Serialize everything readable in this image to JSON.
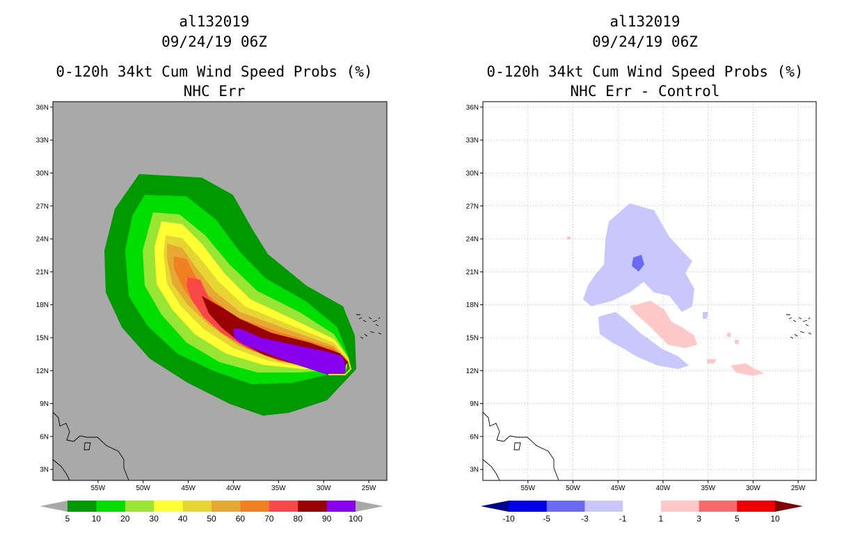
{
  "chart_data": [
    {
      "type": "heatmap",
      "storm_id": "al132019",
      "date": "09/24/19 06Z",
      "title": "0-120h 34kt Cum Wind Speed Probs (%)",
      "subtitle": "NHC Err",
      "lon_range": [
        -60,
        -23
      ],
      "lat_range": [
        2,
        36.5
      ],
      "x_ticks": [
        "55W",
        "50W",
        "45W",
        "40W",
        "35W",
        "30W",
        "25W"
      ],
      "y_ticks": [
        "36N",
        "33N",
        "30N",
        "27N",
        "24N",
        "21N",
        "18N",
        "15N",
        "12N",
        "9N",
        "6N",
        "3N"
      ],
      "grid": false,
      "colorbar": {
        "labels": [
          "5",
          "10",
          "20",
          "30",
          "40",
          "50",
          "60",
          "70",
          "80",
          "90",
          "100"
        ],
        "colors": [
          "#009900",
          "#00dd00",
          "#99e533",
          "#ffff33",
          "#e6d533",
          "#e6a833",
          "#f08020",
          "#fa4848",
          "#990000",
          "#8800ee"
        ],
        "under_color": "#a9a9a9",
        "over_color": "#a9a9a9"
      }
    },
    {
      "type": "heatmap",
      "storm_id": "al132019",
      "date": "09/24/19 06Z",
      "title": "0-120h 34kt Cum Wind Speed Probs (%)",
      "subtitle": "NHC Err - Control",
      "lon_range": [
        -60,
        -23
      ],
      "lat_range": [
        2,
        36.5
      ],
      "x_ticks": [
        "55W",
        "50W",
        "45W",
        "40W",
        "35W",
        "30W",
        "25W"
      ],
      "y_ticks": [
        "36N",
        "33N",
        "30N",
        "27N",
        "24N",
        "21N",
        "18N",
        "15N",
        "12N",
        "9N",
        "6N",
        "3N"
      ],
      "grid": true,
      "colorbar": {
        "labels": [
          "-10",
          "-5",
          "-3",
          "-1",
          "1",
          "3",
          "5",
          "10"
        ],
        "colors": [
          "#0000e6",
          "#6a6af5",
          "#c8c8ff",
          "#ffffff",
          "#ffc8c8",
          "#f56a6a",
          "#ee0000"
        ],
        "under_color": "#00008b",
        "over_color": "#800000"
      }
    }
  ]
}
